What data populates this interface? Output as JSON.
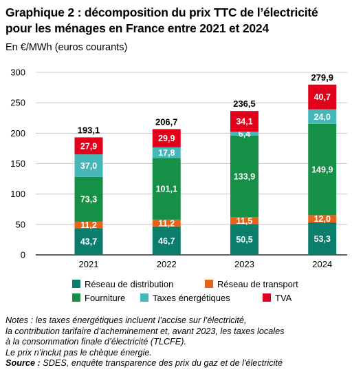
{
  "title_line1": "Graphique 2 : décomposition du prix TTC de l’électricité",
  "title_line2": "pour les ménages en France entre 2021 et 2024",
  "subtitle": "En €/MWh (euros courants)",
  "chart_data": {
    "type": "bar",
    "stacked": true,
    "categories": [
      "2021",
      "2022",
      "2023",
      "2024"
    ],
    "series": [
      {
        "name": "Réseau de distribution",
        "color": "#0a7d6b",
        "values": [
          43.7,
          46.7,
          50.5,
          53.3
        ],
        "labels": [
          "43,7",
          "46,7",
          "50,5",
          "53,3"
        ]
      },
      {
        "name": "Réseau de transport",
        "color": "#e8631a",
        "values": [
          11.2,
          11.2,
          11.5,
          12.0
        ],
        "labels": [
          "11,2",
          "11,2",
          "11,5",
          "12,0"
        ]
      },
      {
        "name": "Fourniture",
        "color": "#159046",
        "values": [
          73.3,
          101.1,
          133.9,
          149.9
        ],
        "labels": [
          "73,3",
          "101,1",
          "133,9",
          "149,9"
        ]
      },
      {
        "name": "Taxes énergétiques",
        "color": "#45b7b9",
        "values": [
          37.0,
          17.8,
          6.4,
          24.0
        ],
        "labels": [
          "37,0",
          "17,8",
          "6,4",
          "24,0"
        ]
      },
      {
        "name": "TVA",
        "color": "#e2001a",
        "values": [
          27.9,
          29.9,
          34.1,
          40.7
        ],
        "labels": [
          "27,9",
          "29,9",
          "34,1",
          "40,7"
        ]
      }
    ],
    "totals": [
      193.1,
      206.7,
      236.5,
      279.9
    ],
    "total_labels": [
      "193,1",
      "206,7",
      "236,5",
      "279,9"
    ],
    "yticks": [
      "0",
      "50",
      "100",
      "150",
      "200",
      "250",
      "300"
    ],
    "ylim": [
      0,
      300
    ],
    "grid": true,
    "legend_position": "bottom"
  },
  "notes": {
    "line1": "Notes : les taxes énergétiques incluent l’accise sur l’électricité,",
    "line2": "la contribution tarifaire d’acheminement et, avant 2023, les taxes locales",
    "line3": "à la consommation finale d’électricité (TLCFE).",
    "line4": "Le prix n’inclut pas le chèque énergie.",
    "source_label": "Source :",
    "source_text": " SDES, enquête transparence des prix du gaz et de l'électricité"
  }
}
